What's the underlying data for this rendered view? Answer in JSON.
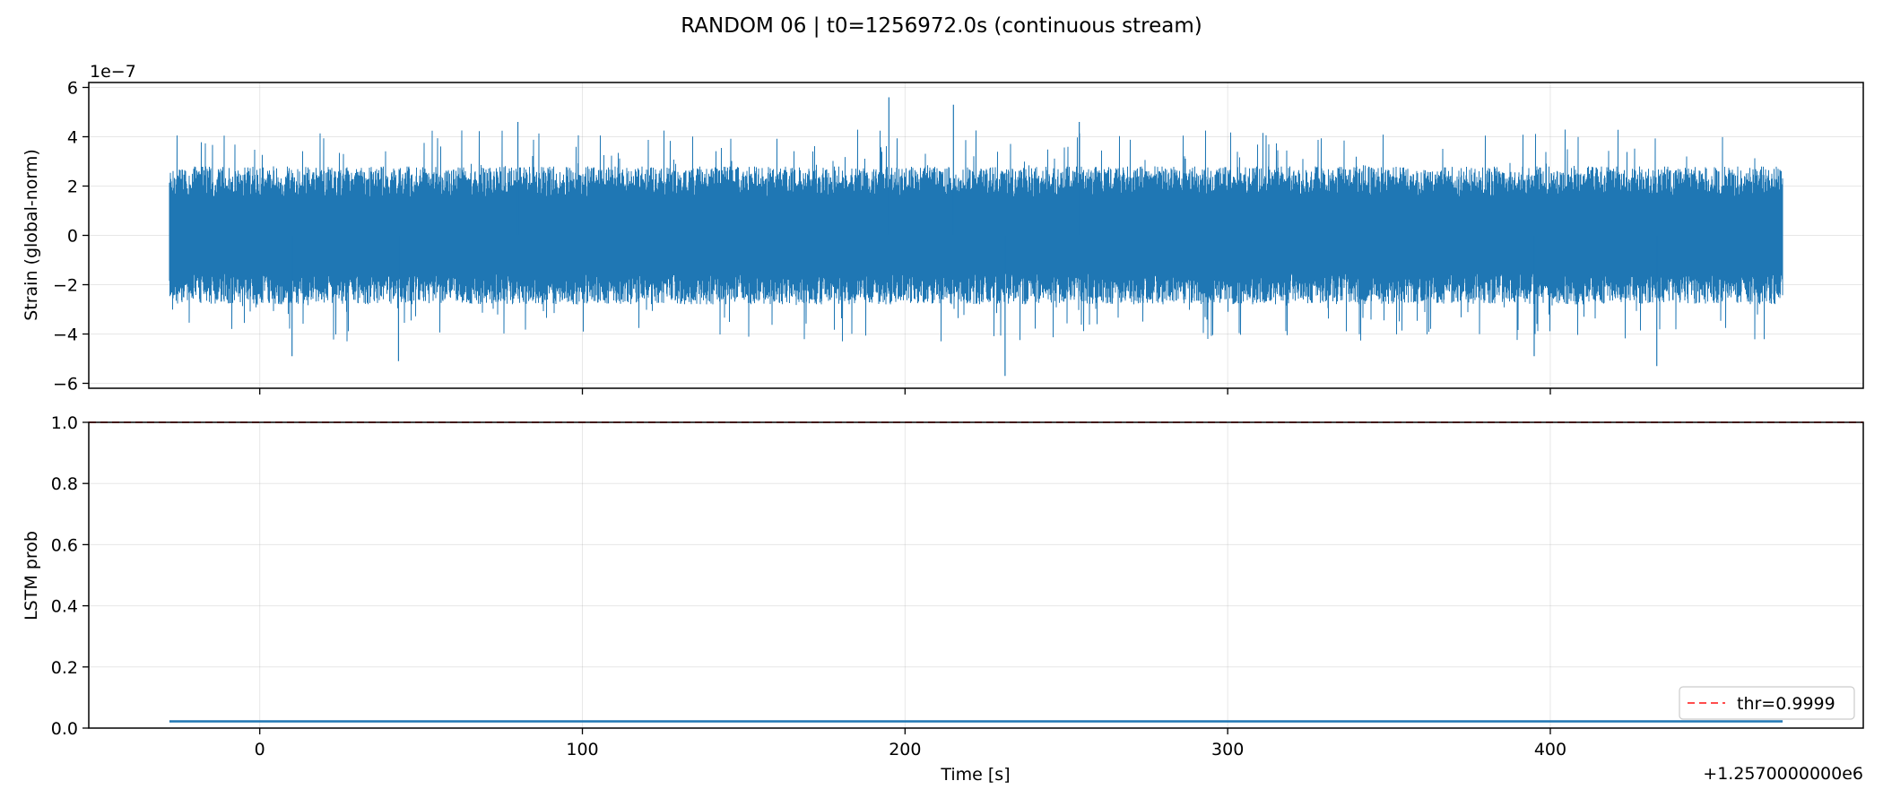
{
  "figure": {
    "title": "RANDOM 06 | t0=1256972.0s (continuous stream)"
  },
  "chart_data": [
    {
      "type": "line",
      "panel": "top",
      "ylabel": "Strain (global-norm)",
      "xlabel": "",
      "y_exponent_label": "1e−7",
      "xlim": [
        -53,
        497
      ],
      "ylim": [
        -6.2,
        6.2
      ],
      "x_ticks": [
        0,
        100,
        200,
        300,
        400
      ],
      "y_ticks": [
        -6,
        -4,
        -2,
        0,
        2,
        4,
        6
      ],
      "y_tick_labels": [
        "−6",
        "−4",
        "−2",
        "0",
        "2",
        "4",
        "6"
      ],
      "grid": true,
      "series": [
        {
          "color": "#1f77b4",
          "x_range": [
            -28,
            472
          ],
          "description_values": {
            "envelope_max_typical": 2.8,
            "envelope_min_typical": -2.8,
            "peaks": [
              {
                "x": 195,
                "y": 5.6
              },
              {
                "x": 231,
                "y": -5.7
              },
              {
                "x": 215,
                "y": 5.3
              },
              {
                "x": 43,
                "y": -5.1
              },
              {
                "x": 433,
                "y": -5.3
              },
              {
                "x": 395,
                "y": -4.9
              },
              {
                "x": 10,
                "y": -4.9
              },
              {
                "x": 254,
                "y": 4.6
              },
              {
                "x": 80,
                "y": 4.6
              }
            ]
          }
        }
      ]
    },
    {
      "type": "line",
      "panel": "bottom",
      "ylabel": "LSTM prob",
      "xlabel": "Time [s]",
      "x_offset_label": "+1.2570000000e6",
      "xlim": [
        -53,
        497
      ],
      "ylim": [
        0,
        1.0
      ],
      "x_ticks": [
        0,
        100,
        200,
        300,
        400
      ],
      "x_tick_labels": [
        "0",
        "100",
        "200",
        "300",
        "400"
      ],
      "y_ticks": [
        0,
        0.2,
        0.4,
        0.6,
        0.8,
        1.0
      ],
      "y_tick_labels": [
        "0.0",
        "0.2",
        "0.4",
        "0.6",
        "0.8",
        "1.0"
      ],
      "grid": true,
      "legend": {
        "placement": "lower right",
        "entries": [
          "thr=0.9999"
        ]
      },
      "series": [
        {
          "color": "#1f77b4",
          "x": [
            -28,
            472
          ],
          "y": [
            0.022,
            0.022
          ]
        },
        {
          "name": "thr=0.9999",
          "color": "#ff0000",
          "style": "dashed",
          "y_constant": 0.9999
        }
      ]
    }
  ]
}
